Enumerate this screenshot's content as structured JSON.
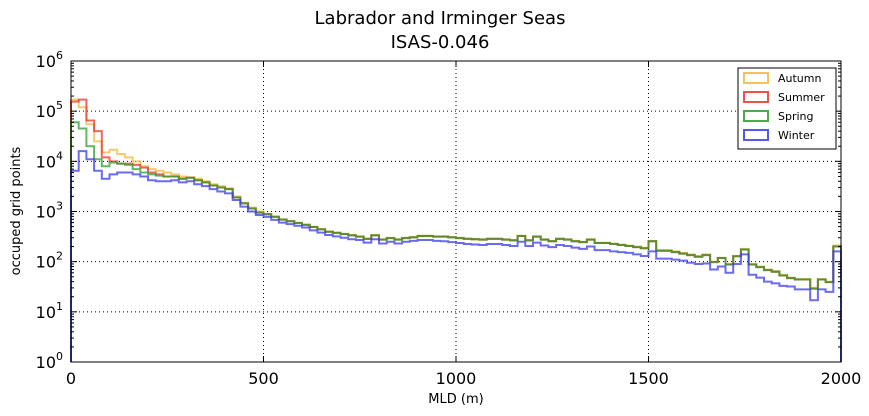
{
  "chart_data": {
    "type": "line",
    "title": "Labrador and Irminger Seas",
    "subtitle": "ISAS-0.046",
    "xlabel": "MLD (m)",
    "ylabel": "occuped grid points",
    "xlim": [
      0,
      2000
    ],
    "ylim": [
      1,
      1000000
    ],
    "yscale": "log",
    "grid": true,
    "legend_position": "top-right",
    "x_ticks": [
      "0",
      "500",
      "1000",
      "1500",
      "2000"
    ],
    "y_ticks": [
      {
        "base": "10",
        "exp": "0",
        "value": 1
      },
      {
        "base": "10",
        "exp": "1",
        "value": 10
      },
      {
        "base": "10",
        "exp": "2",
        "value": 100
      },
      {
        "base": "10",
        "exp": "3",
        "value": 1000
      },
      {
        "base": "10",
        "exp": "4",
        "value": 10000
      },
      {
        "base": "10",
        "exp": "5",
        "value": 100000
      },
      {
        "base": "10",
        "exp": "6",
        "value": 1000000
      }
    ],
    "bin_width": 20,
    "series": [
      {
        "name": "Autumn",
        "color": "#f0b840",
        "values": [
          170000,
          120000,
          55000,
          25000,
          15000,
          17000,
          14000,
          12000,
          10000,
          8000,
          7000,
          6500,
          6000,
          5500,
          5000,
          4800,
          4500,
          4000,
          3500,
          3200,
          2900,
          2000,
          1500,
          1200,
          1000,
          900,
          800,
          700,
          650,
          600,
          550,
          500,
          450,
          400,
          380,
          360,
          340,
          320,
          290,
          340,
          280,
          300,
          280,
          300,
          310,
          330,
          330,
          320,
          320,
          310,
          300,
          290,
          285,
          280,
          290,
          290,
          280,
          270,
          330,
          270,
          320,
          280,
          260,
          290,
          280,
          260,
          250,
          280,
          240,
          240,
          230,
          220,
          210,
          200,
          190,
          260,
          170,
          170,
          160,
          150,
          140,
          130,
          140,
          100,
          120,
          90,
          130,
          180,
          90,
          80,
          70,
          65,
          55,
          48,
          45,
          45,
          30,
          45,
          40,
          210
        ]
      },
      {
        "name": "Summer",
        "color": "#e8342c",
        "values": [
          155000,
          170000,
          65000,
          40000,
          12000,
          10000,
          9000,
          9000,
          8500,
          7500,
          6000,
          5500,
          5000,
          5000,
          4500,
          4700,
          4200,
          3800,
          3300,
          3000,
          2800,
          1900,
          1450,
          1150,
          950,
          880,
          780,
          690,
          640,
          590,
          540,
          490,
          440,
          395,
          375,
          355,
          335,
          315,
          285,
          335,
          275,
          295,
          275,
          295,
          305,
          325,
          325,
          315,
          315,
          305,
          295,
          285,
          280,
          275,
          285,
          285,
          275,
          265,
          325,
          265,
          315,
          275,
          255,
          285,
          275,
          255,
          245,
          275,
          235,
          235,
          225,
          215,
          205,
          195,
          185,
          255,
          165,
          165,
          155,
          145,
          135,
          125,
          135,
          98,
          118,
          88,
          128,
          175,
          88,
          78,
          68,
          63,
          53,
          47,
          44,
          44,
          29,
          44,
          39,
          200
        ]
      },
      {
        "name": "Spring",
        "color": "#2d9e2d",
        "values": [
          60000,
          45000,
          20000,
          11000,
          8000,
          9500,
          9000,
          8500,
          7000,
          6000,
          5500,
          5200,
          5000,
          5000,
          4500,
          4700,
          4200,
          3800,
          3300,
          3000,
          2800,
          1900,
          1450,
          1150,
          950,
          880,
          780,
          690,
          640,
          590,
          540,
          490,
          440,
          395,
          375,
          355,
          335,
          315,
          285,
          335,
          275,
          295,
          275,
          295,
          305,
          325,
          325,
          315,
          315,
          305,
          295,
          285,
          280,
          275,
          285,
          285,
          275,
          265,
          325,
          265,
          315,
          275,
          255,
          285,
          275,
          255,
          245,
          275,
          235,
          235,
          225,
          215,
          205,
          195,
          185,
          255,
          165,
          165,
          155,
          145,
          135,
          125,
          135,
          98,
          118,
          88,
          128,
          175,
          88,
          78,
          68,
          63,
          53,
          47,
          44,
          44,
          29,
          44,
          39,
          200
        ]
      },
      {
        "name": "Winter",
        "color": "#3a3ae8",
        "values": [
          6500,
          16000,
          11000,
          6500,
          4500,
          5500,
          6000,
          6000,
          5500,
          5000,
          4200,
          4000,
          4000,
          4200,
          3800,
          4000,
          3500,
          3200,
          2800,
          2500,
          2300,
          1700,
          1250,
          1000,
          850,
          780,
          680,
          600,
          560,
          520,
          480,
          420,
          380,
          340,
          320,
          300,
          280,
          270,
          240,
          280,
          230,
          250,
          230,
          250,
          260,
          270,
          270,
          260,
          255,
          245,
          235,
          225,
          220,
          215,
          225,
          225,
          215,
          205,
          250,
          205,
          240,
          210,
          195,
          215,
          205,
          190,
          180,
          200,
          170,
          170,
          160,
          155,
          150,
          140,
          130,
          160,
          115,
          115,
          110,
          105,
          95,
          90,
          92,
          70,
          80,
          60,
          90,
          140,
          55,
          48,
          40,
          37,
          33,
          32,
          28,
          28,
          17,
          28,
          25,
          160
        ]
      }
    ]
  }
}
